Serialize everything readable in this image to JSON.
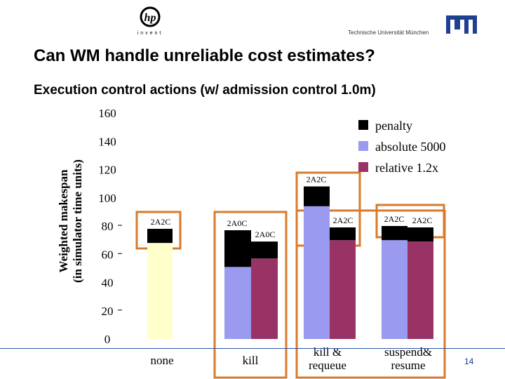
{
  "header": {
    "logo_text": "invent",
    "institution": "Technische Universität München"
  },
  "slide": {
    "title": "Can WM handle unreliable cost estimates?",
    "subtitle": "Execution control actions (w/ admission control 1.0m)",
    "page_number": "14"
  },
  "colors": {
    "penalty": "#000000",
    "absolute": "#9a9af0",
    "relative": "#993366",
    "none_bar": "#ffffcc",
    "highlight": "#d97a2b"
  },
  "chart_data": {
    "type": "bar",
    "stacked": true,
    "ylabel_line1": "Weighted makespan",
    "ylabel_line2": "(in simulator time units)",
    "ylim": [
      0,
      160
    ],
    "yticks": [
      "0",
      "20",
      "40",
      "60",
      "80",
      "100",
      "120",
      "140",
      "160"
    ],
    "categories": [
      "none",
      "kill",
      "kill & requeue",
      "suspend& resume"
    ],
    "category_lines": [
      [
        "none"
      ],
      [
        "kill"
      ],
      [
        "kill &",
        "requeue"
      ],
      [
        "suspend&",
        "resume"
      ]
    ],
    "legend": [
      "penalty",
      "absolute 5000",
      "relative 1.2x"
    ],
    "legend_position": "top-right",
    "bars": [
      {
        "category": "none",
        "series": "none",
        "base": 68,
        "penalty": 10,
        "label": "2A2C"
      },
      {
        "category": "kill",
        "series": "absolute 5000",
        "base": 51,
        "penalty": 26,
        "label": "2A0C"
      },
      {
        "category": "kill",
        "series": "relative 1.2x",
        "base": 57,
        "penalty": 12,
        "label": "2A0C"
      },
      {
        "category": "kill & requeue",
        "series": "absolute 5000",
        "base": 94,
        "penalty": 14,
        "label": "2A2C"
      },
      {
        "category": "kill & requeue",
        "series": "relative 1.2x",
        "base": 70,
        "penalty": 9,
        "label": "2A2C"
      },
      {
        "category": "suspend& resume",
        "series": "absolute 5000",
        "base": 70,
        "penalty": 10,
        "label": "2A2C"
      },
      {
        "category": "suspend& resume",
        "series": "relative 1.2x",
        "base": 69,
        "penalty": 10,
        "label": "2A2C"
      }
    ]
  }
}
